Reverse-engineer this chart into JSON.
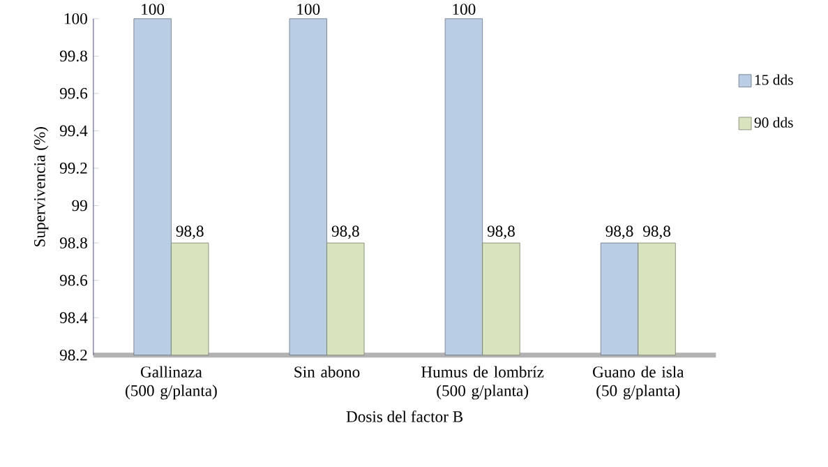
{
  "chart_data": {
    "type": "bar",
    "xlabel": "Dosis del factor B",
    "ylabel": "Supervivencia (%)",
    "categories": [
      "Gallinaza (500 g/planta)",
      "Sin abono",
      "Humus de lombríz (500 g/planta)",
      "Guano de isla (50 g/planta)"
    ],
    "series": [
      {
        "name": "15 dds",
        "color": "#b9cde5",
        "values": [
          100,
          100,
          100,
          98.8
        ],
        "value_labels": [
          "100",
          "100",
          "100",
          "98,8"
        ]
      },
      {
        "name": "90 dds",
        "color": "#d7e4bd",
        "values": [
          98.8,
          98.8,
          98.8,
          98.8
        ],
        "value_labels": [
          "98,8",
          "98,8",
          "98,8",
          "98,8"
        ]
      }
    ],
    "ylim": [
      98.2,
      100
    ],
    "yticks": [
      98.2,
      98.4,
      98.6,
      98.8,
      99,
      99.2,
      99.4,
      99.6,
      99.8,
      100
    ],
    "grid": false,
    "legend": "right"
  }
}
